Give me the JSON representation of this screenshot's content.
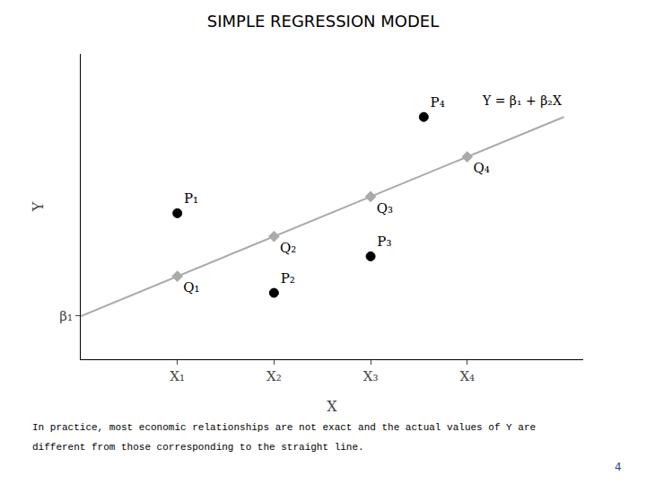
{
  "chart_data": {
    "type": "scatter",
    "title": "SIMPLE REGRESSION MODEL",
    "x_label": "X",
    "y_label": "Y",
    "xlim": [
      0,
      5.2
    ],
    "ylim": [
      0,
      0.92
    ],
    "xticks": [
      {
        "value": 1.0,
        "label": "X₁"
      },
      {
        "value": 2.0,
        "label": "X₂"
      },
      {
        "value": 3.0,
        "label": "X₃"
      },
      {
        "value": 4.0,
        "label": "X₄"
      }
    ],
    "yticks": [
      {
        "value": 0.13,
        "label": "β₁"
      }
    ],
    "grid": false,
    "series": [
      {
        "type": "line",
        "color": "#aaaaaa",
        "x": [
          0.0,
          5.0
        ],
        "values": [
          0.13,
          0.73
        ]
      },
      {
        "type": "scatter",
        "marker": "diamond",
        "color": "#aaaaaa",
        "x": [
          1.0,
          2.0,
          3.0,
          4.0
        ],
        "values": [
          0.25,
          0.37,
          0.49,
          0.61
        ],
        "point_labels": [
          "Q₁",
          "Q₂",
          "Q₃",
          "Q₄"
        ]
      },
      {
        "type": "scatter",
        "marker": "circle",
        "color": "#000000",
        "x": [
          1.0,
          2.0,
          3.0,
          3.55
        ],
        "values": [
          0.44,
          0.2,
          0.31,
          0.73
        ],
        "point_labels": [
          "P₁",
          "P₂",
          "P₃",
          "P₄"
        ]
      }
    ],
    "annotations": [
      "Y = β₁ + β₂X",
      "In practice, most economic relationships are not exact and the actual values of Y are",
      "different from those corresponding to the straight line.",
      "4"
    ]
  }
}
